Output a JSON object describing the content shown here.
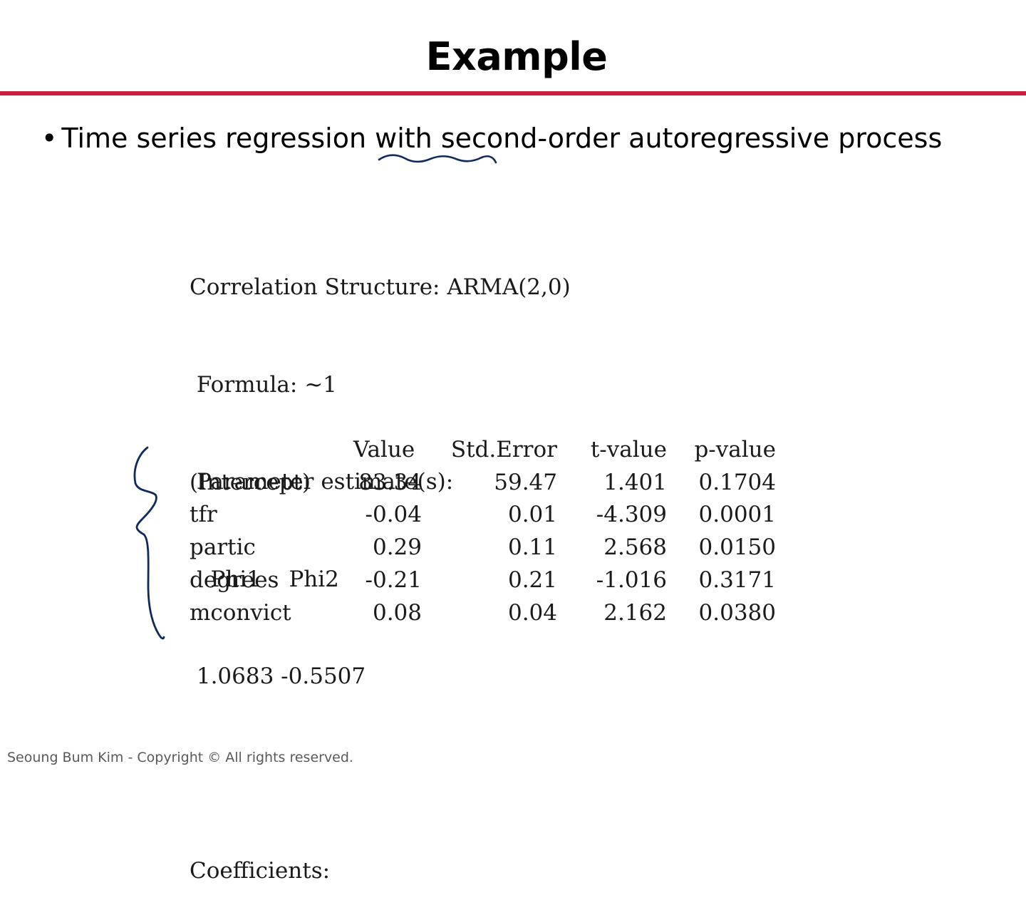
{
  "slide": {
    "title": "Example",
    "accent_color": "#c8203f",
    "annotation_color": "#0f2a5c"
  },
  "bullet": {
    "symbol": "•",
    "text": "Time series regression with second-order autoregressive process"
  },
  "output": {
    "lines": [
      "Correlation Structure: ARMA(2,0)",
      " Formula: ~1",
      " Parameter estimate(s):",
      "   Phi1    Phi2",
      " 1.0683 -0.5507",
      "",
      "Coefficients:"
    ]
  },
  "coefficients": {
    "headers": [
      "",
      "Value",
      "Std.Error",
      "t-value",
      "p-value"
    ],
    "rows": [
      [
        "(Intercept)",
        "83.34",
        "59.47",
        "1.401",
        "0.1704"
      ],
      [
        "tfr",
        "-0.04",
        "0.01",
        "-4.309",
        "0.0001"
      ],
      [
        "partic",
        "0.29",
        "0.11",
        "2.568",
        "0.0150"
      ],
      [
        "degrees",
        "-0.21",
        "0.21",
        "-1.016",
        "0.3171"
      ],
      [
        "mconvict",
        "0.08",
        "0.04",
        "2.162",
        "0.0380"
      ]
    ]
  },
  "footer": {
    "text": "Seoung Bum Kim - Copyright © All rights reserved."
  }
}
